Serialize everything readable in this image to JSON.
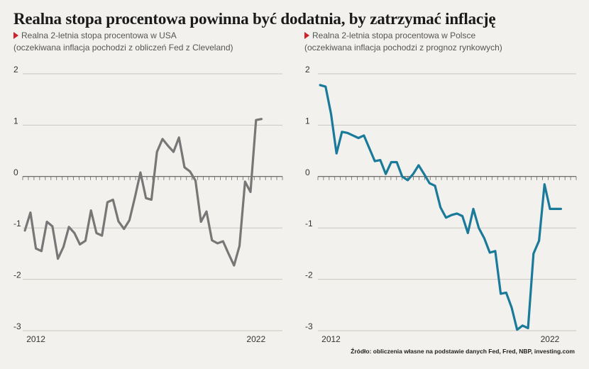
{
  "title": "Realna stopa procentowa powinna być dodatnia, by zatrzymać inflację",
  "source": "Źródło: obliczenia własne na podstawie danych Fed, Fred, NBP, investing.com",
  "chart_data": [
    {
      "type": "line",
      "subtitle_line1": "Realna 2-letnia stopa procentowa w USA",
      "subtitle_line2": "(oczekiwana inflacja pochodzi z obliczeń Fed z Cleveland)",
      "color": "#777777",
      "ylim": [
        -3,
        2
      ],
      "yticks": [
        "2",
        "1",
        "0",
        "-1",
        "-2",
        "-3"
      ],
      "xtick_labels": [
        "2012",
        "2022"
      ],
      "x_range": [
        2011.4,
        2023.2
      ],
      "x": [
        2011.5,
        2011.75,
        2012.0,
        2012.25,
        2012.5,
        2012.75,
        2013.0,
        2013.25,
        2013.5,
        2013.75,
        2014.0,
        2014.25,
        2014.5,
        2014.75,
        2015.0,
        2015.25,
        2015.5,
        2015.75,
        2016.0,
        2016.25,
        2016.5,
        2016.75,
        2017.0,
        2017.25,
        2017.5,
        2017.75,
        2018.0,
        2018.25,
        2018.5,
        2018.75,
        2019.0,
        2019.25,
        2019.5,
        2019.75,
        2020.0,
        2020.25,
        2020.5,
        2020.75,
        2021.0,
        2021.25,
        2021.5,
        2021.75,
        2022.0,
        2022.25
      ],
      "values": [
        -1.05,
        -0.7,
        -1.4,
        -1.45,
        -0.88,
        -0.97,
        -1.6,
        -1.37,
        -0.98,
        -1.1,
        -1.32,
        -1.25,
        -0.66,
        -1.1,
        -1.15,
        -0.5,
        -0.45,
        -0.87,
        -1.02,
        -0.85,
        -0.4,
        0.08,
        -0.42,
        -0.45,
        0.48,
        0.73,
        0.6,
        0.48,
        0.76,
        0.18,
        0.1,
        -0.08,
        -0.88,
        -0.68,
        -1.24,
        -1.3,
        -1.26,
        -1.5,
        -1.73,
        -1.35,
        -0.1,
        -0.3,
        1.1,
        1.12
      ]
    },
    {
      "type": "line",
      "subtitle_line1": "Realna 2-letnia stopa procentowa w Polsce",
      "subtitle_line2": "(oczekiwana inflacja pochodzi z prognoz rynkowych)",
      "color": "#1a7a9a",
      "ylim": [
        -3,
        2
      ],
      "yticks": [
        "2",
        "1",
        "0",
        "-1",
        "-2",
        "-3"
      ],
      "xtick_labels": [
        "2012",
        "2022"
      ],
      "x_range": [
        2011.4,
        2023.2
      ],
      "x": [
        2011.5,
        2011.75,
        2012.0,
        2012.25,
        2012.5,
        2012.75,
        2013.0,
        2013.25,
        2013.5,
        2013.75,
        2014.0,
        2014.25,
        2014.5,
        2014.75,
        2015.0,
        2015.25,
        2015.5,
        2015.75,
        2016.0,
        2016.25,
        2016.5,
        2016.75,
        2017.0,
        2017.25,
        2017.5,
        2017.75,
        2018.0,
        2018.25,
        2018.5,
        2018.75,
        2019.0,
        2019.25,
        2019.5,
        2019.75,
        2020.0,
        2020.25,
        2020.5,
        2020.75,
        2021.0,
        2021.25,
        2021.5,
        2021.75,
        2022.0,
        2022.25,
        2022.5
      ],
      "values": [
        1.78,
        1.75,
        1.22,
        0.45,
        0.87,
        0.85,
        0.8,
        0.75,
        0.8,
        0.55,
        0.3,
        0.32,
        0.05,
        0.28,
        0.28,
        0.0,
        -0.07,
        0.05,
        0.22,
        0.05,
        -0.13,
        -0.18,
        -0.6,
        -0.8,
        -0.75,
        -0.72,
        -0.77,
        -1.1,
        -0.63,
        -1.0,
        -1.2,
        -1.48,
        -1.45,
        -2.28,
        -2.26,
        -2.55,
        -2.98,
        -2.9,
        -2.95,
        -1.5,
        -1.25,
        -0.15,
        -0.63,
        -0.63,
        -0.63
      ]
    }
  ]
}
